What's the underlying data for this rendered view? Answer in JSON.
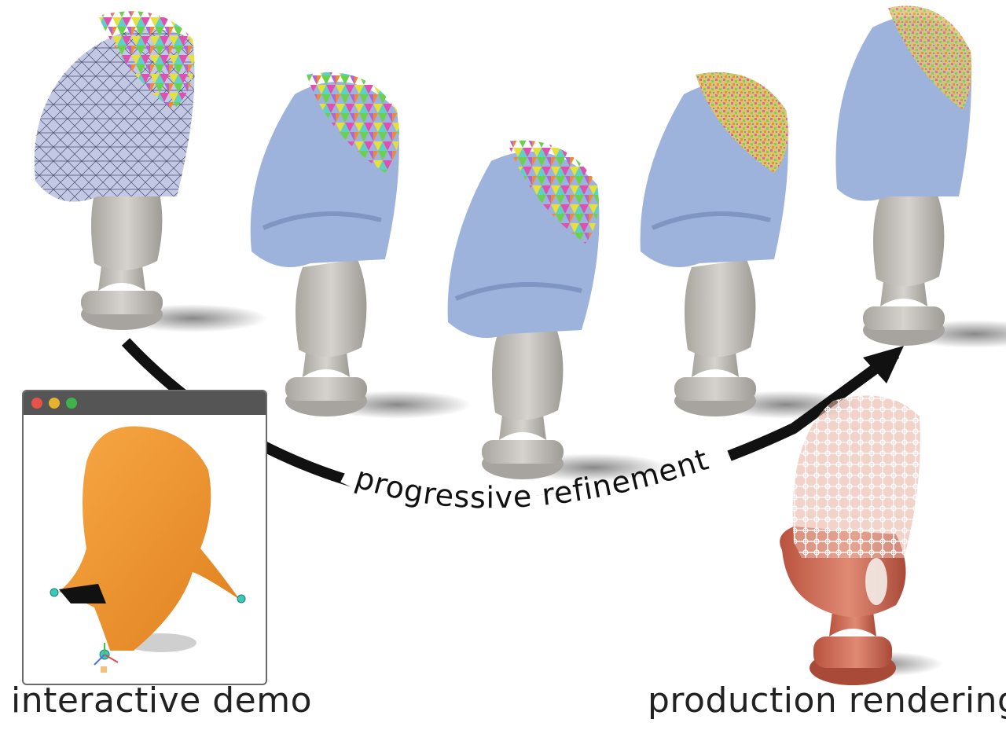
{
  "captions": {
    "left": "interactive demo",
    "right": "production rendering",
    "curve": "progressive refinement"
  },
  "window": {
    "buttons": [
      {
        "name": "close",
        "color": "#e5534b"
      },
      {
        "name": "minimize",
        "color": "#e6b32e"
      },
      {
        "name": "maximize",
        "color": "#3fb24a"
      }
    ]
  },
  "colors": {
    "cloth_blue": "#9db3dc",
    "bust_gray": "#c9c6c2",
    "cloth_orange": "#f0962e",
    "bust_marble": "#d9745f",
    "lace": "#eeeeee",
    "arrow": "#111111"
  }
}
